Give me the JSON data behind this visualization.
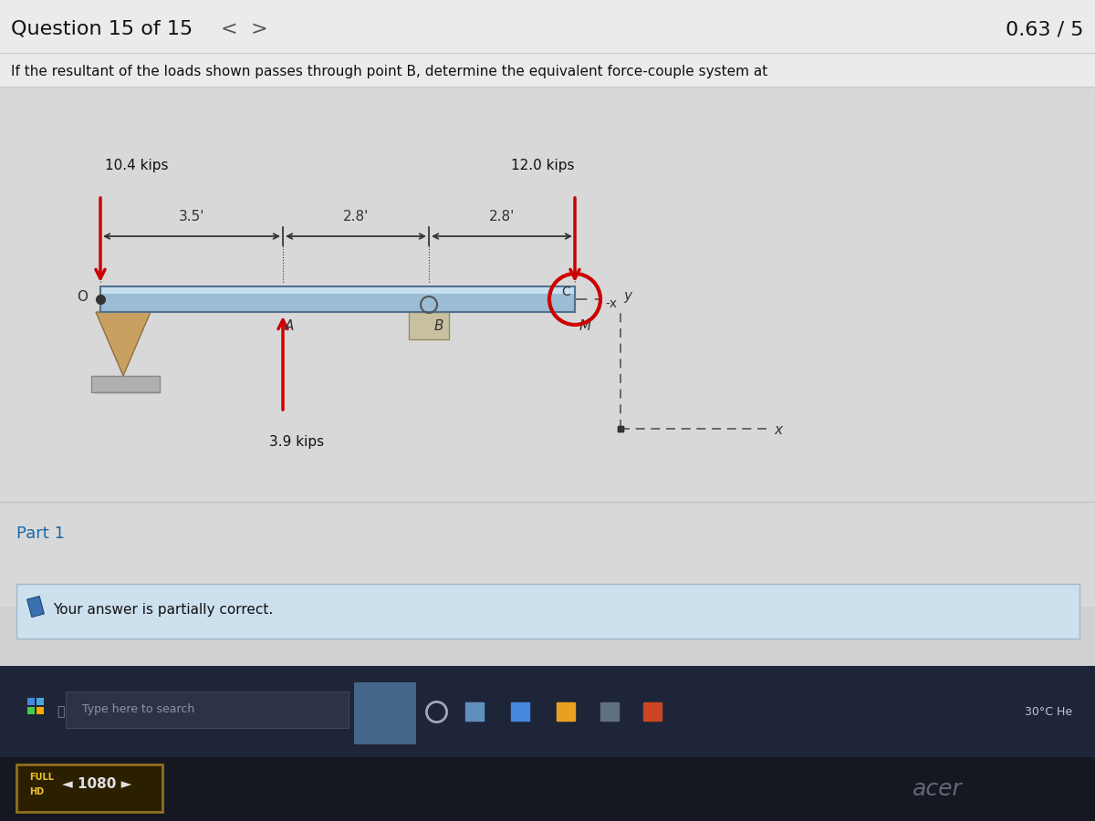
{
  "bg_color": "#d0d0d0",
  "header_bg": "#e8e8e8",
  "content_bg": "#d8d8d8",
  "title_text": "Question 15 of 15",
  "score_text": "0.63 / 5",
  "problem_text": "If the resultant of the loads shown passes through point B, determine the equivalent force-couple system at",
  "force1_label": "10.4 kips",
  "force2_label": "12.0 kips",
  "force3_label": "3.9 kips",
  "dim1": "3.5'",
  "dim2": "2.8'",
  "dim3": "2.8'",
  "part_label": "Part 1",
  "answer_text": "Your answer is partially correct.",
  "beam_color_main": "#9bbdd4",
  "beam_color_top": "#c8dfee",
  "beam_color_bot": "#6890aa",
  "beam_edge_color": "#507090",
  "arrow_color": "#cc0000",
  "support_tri_color": "#c8a060",
  "support_block_color": "#b8b8b8",
  "circle_color": "#cc0000",
  "dashed_color": "#555555",
  "taskbar_bg": "#1e2538",
  "taskbar_search_bg": "#2c3248",
  "footer_bg": "#151820",
  "fulhd_bg": "#2a2000",
  "fulhd_border": "#907020"
}
